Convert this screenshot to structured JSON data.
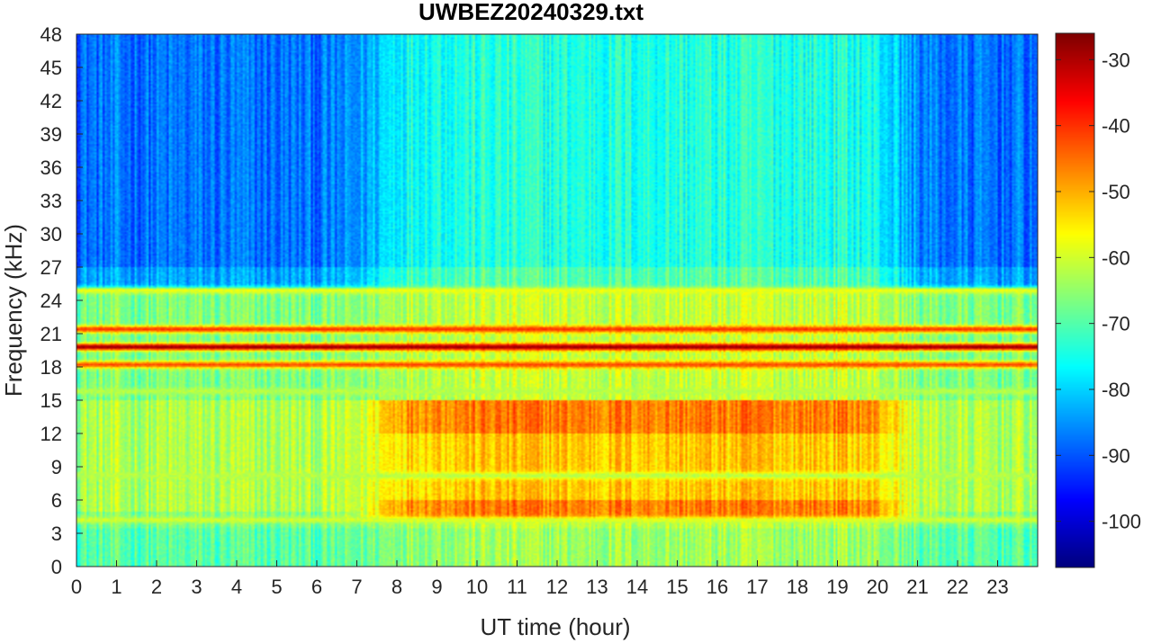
{
  "chart_data": {
    "type": "heatmap",
    "title": "UWBEZ20240329.txt",
    "xlabel": "UT time (hour)",
    "ylabel": "Frequency (kHz)",
    "xlim": [
      0,
      24
    ],
    "ylim": [
      0,
      48
    ],
    "x_ticks": [
      "0",
      "1",
      "2",
      "3",
      "4",
      "5",
      "6",
      "7",
      "8",
      "9",
      "10",
      "11",
      "12",
      "13",
      "14",
      "15",
      "16",
      "17",
      "18",
      "19",
      "20",
      "21",
      "22",
      "23"
    ],
    "y_ticks": [
      "0",
      "3",
      "6",
      "9",
      "12",
      "15",
      "18",
      "21",
      "24",
      "27",
      "30",
      "33",
      "36",
      "39",
      "42",
      "45",
      "48"
    ],
    "colorbar": {
      "colormap": "jet",
      "range": [
        -107,
        -26
      ],
      "ticks": [
        "-30",
        "-40",
        "-50",
        "-60",
        "-70",
        "-80",
        "-90",
        "-100"
      ]
    },
    "features": {
      "strong_bands_khz": [
        {
          "freq": 19.8,
          "level": -28
        },
        {
          "freq": 21.4,
          "level": -40
        },
        {
          "freq": 18.2,
          "level": -42
        }
      ],
      "moderate_bands_khz": [
        {
          "freq": 24.9,
          "level": -58
        },
        {
          "freq": 4.2,
          "level": -60
        },
        {
          "freq": 15.8,
          "level": -62
        },
        {
          "freq": 8.2,
          "level": -62
        }
      ],
      "daytime_broadband": {
        "start_hour": 7.5,
        "end_hour": 20.5,
        "freq_range_khz": [
          4,
          15
        ],
        "level": -50
      },
      "background_level_high_freq": -88,
      "background_level_mid_freq": -75,
      "background_level_low_freq": -62
    }
  }
}
